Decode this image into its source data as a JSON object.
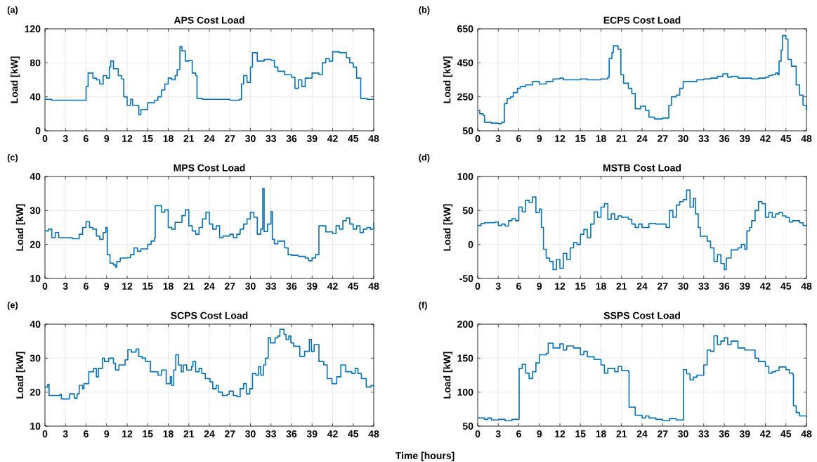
{
  "chart_data": [
    {
      "type": "step",
      "title": "APS Cost Load",
      "ylabel": "Load [kW]",
      "annotations": [
        "(a)"
      ],
      "color": "#0072bd",
      "grid": true,
      "xlim": [
        0,
        48
      ],
      "xticks": [
        0,
        3,
        6,
        9,
        12,
        15,
        18,
        21,
        24,
        27,
        30,
        33,
        36,
        39,
        42,
        45,
        48
      ],
      "ylim": [
        0,
        120
      ],
      "yticks": [
        0,
        40,
        80,
        120
      ],
      "x": [
        0,
        1,
        2,
        3,
        4,
        5,
        6,
        6.3,
        7,
        7.5,
        8,
        8.5,
        9,
        9.4,
        9.6,
        10,
        10.7,
        11.2,
        11.5,
        12,
        12.5,
        12.8,
        13.7,
        14,
        15,
        16,
        16.5,
        17,
        17.5,
        18,
        18.5,
        19,
        19.3,
        19.7,
        20,
        20.5,
        21,
        21.5,
        22,
        22.2,
        23,
        25,
        27,
        28.4,
        28.7,
        29,
        29.5,
        30,
        30.3,
        31,
        32,
        33,
        33.5,
        34,
        35,
        36,
        36.5,
        37,
        37.5,
        38,
        39,
        40,
        40.5,
        41,
        41.5,
        42,
        43,
        44,
        44.5,
        45,
        45.5,
        46.1,
        47,
        48
      ],
      "values": [
        37,
        36,
        36,
        36,
        36,
        36,
        52,
        68,
        62,
        60,
        55,
        65,
        62,
        75,
        82,
        73,
        65,
        61,
        40,
        30,
        37,
        30,
        19,
        25,
        33,
        36,
        40,
        48,
        55,
        62,
        60,
        65,
        72,
        99,
        94,
        82,
        83,
        68,
        65,
        38,
        37,
        37,
        36,
        37,
        55,
        65,
        57,
        75,
        92,
        82,
        84,
        83,
        75,
        70,
        66,
        63,
        50,
        60,
        52,
        62,
        68,
        66,
        80,
        85,
        82,
        93,
        92,
        86,
        80,
        75,
        62,
        38,
        37,
        37
      ]
    },
    {
      "type": "step",
      "title": "ECPS Cost Load",
      "ylabel": "Load [kW]",
      "annotations": [
        "(b)"
      ],
      "color": "#0072bd",
      "grid": true,
      "xlim": [
        0,
        48
      ],
      "xticks": [
        0,
        3,
        6,
        9,
        12,
        15,
        18,
        21,
        24,
        27,
        30,
        33,
        36,
        39,
        42,
        45,
        48
      ],
      "ylim": [
        50,
        650
      ],
      "yticks": [
        50,
        250,
        450,
        650
      ],
      "x": [
        0,
        0.3,
        0.8,
        1,
        2,
        3,
        3.5,
        3.9,
        4.3,
        4.8,
        5.2,
        5.8,
        6.2,
        7,
        8,
        9,
        10,
        11,
        12,
        12.5,
        15,
        16,
        18,
        19,
        19.2,
        19.6,
        19.8,
        20.5,
        20.9,
        21.3,
        22,
        22.5,
        23,
        23.8,
        24.5,
        25,
        25.8,
        27,
        27.9,
        28.3,
        29,
        29.5,
        30,
        31,
        32,
        33,
        34,
        35,
        35.8,
        36.5,
        37,
        38,
        40,
        41,
        42,
        42.5,
        43,
        43.5,
        43.8,
        44,
        44.3,
        44.5,
        45,
        45.3,
        45.8,
        46.5,
        47,
        47.5,
        48
      ],
      "values": [
        170,
        150,
        140,
        100,
        95,
        92,
        100,
        210,
        240,
        250,
        275,
        300,
        310,
        320,
        340,
        325,
        340,
        355,
        360,
        350,
        355,
        350,
        355,
        365,
        475,
        510,
        550,
        530,
        380,
        330,
        300,
        270,
        180,
        195,
        170,
        130,
        120,
        125,
        200,
        250,
        260,
        300,
        340,
        340,
        350,
        355,
        360,
        370,
        385,
        365,
        370,
        360,
        355,
        360,
        365,
        375,
        380,
        390,
        380,
        460,
        525,
        610,
        590,
        470,
        430,
        320,
        260,
        200,
        170
      ]
    },
    {
      "type": "step",
      "title": "MPS Cost Load",
      "ylabel": "Load [kW]",
      "annotations": [
        "(c)"
      ],
      "color": "#0072bd",
      "grid": true,
      "xlim": [
        0,
        48
      ],
      "xticks": [
        0,
        3,
        6,
        9,
        12,
        15,
        18,
        21,
        24,
        27,
        30,
        33,
        36,
        39,
        42,
        45,
        48
      ],
      "ylim": [
        10,
        40
      ],
      "yticks": [
        10,
        20,
        30,
        40
      ],
      "x": [
        0,
        0.5,
        1,
        1.5,
        2,
        3,
        4,
        5,
        5.5,
        6,
        6.5,
        7,
        7.5,
        8,
        8.5,
        8.9,
        9.1,
        9.5,
        10,
        10.3,
        10.5,
        11,
        12,
        12.5,
        13,
        13.5,
        14,
        15,
        15.5,
        16,
        16.1,
        17,
        17.5,
        18,
        18.5,
        19,
        20,
        20.5,
        21,
        21.5,
        22,
        22.5,
        23,
        23.5,
        24,
        24.5,
        25,
        25.5,
        26,
        27,
        27.5,
        28,
        28.5,
        29,
        29.5,
        30,
        30.5,
        31,
        31.5,
        31.8,
        32,
        32.5,
        33,
        33.2,
        33.5,
        34,
        35,
        35.5,
        36,
        37,
        38,
        38.5,
        39,
        39.5,
        40,
        41,
        42,
        42.5,
        43,
        43.5,
        44,
        44.5,
        45,
        45.5,
        46,
        46.5,
        47,
        47.5,
        48
      ],
      "values": [
        24,
        24.5,
        22,
        23.5,
        22,
        22,
        21.7,
        23,
        25,
        26.7,
        25,
        24.5,
        22.5,
        21.5,
        23.5,
        25,
        17,
        14.5,
        14,
        13.3,
        15,
        16,
        16.1,
        17,
        19,
        18,
        18.7,
        20,
        21,
        22,
        31.4,
        29.5,
        30.2,
        25,
        24.5,
        26.5,
        28.5,
        30.2,
        25.5,
        24,
        23,
        25,
        27.5,
        29.5,
        26,
        24.5,
        25.5,
        22,
        22.5,
        23,
        22,
        23,
        24.5,
        26,
        27.5,
        29.5,
        28,
        23,
        24.5,
        36.5,
        23.8,
        26,
        29.7,
        21.5,
        20.2,
        21,
        19,
        17,
        16.8,
        16.5,
        16,
        15.2,
        16,
        17,
        25.5,
        23.7,
        23.2,
        25.5,
        24.5,
        27,
        27.8,
        26,
        24.5,
        25.5,
        23.5,
        24.5,
        25,
        24.5,
        26.5
      ]
    },
    {
      "type": "step",
      "title": "MSTB Cost Load",
      "ylabel": "Load [kW]",
      "annotations": [
        "(d)"
      ],
      "color": "#0072bd",
      "grid": true,
      "xlim": [
        0,
        48
      ],
      "xticks": [
        0,
        3,
        6,
        9,
        12,
        15,
        18,
        21,
        24,
        27,
        30,
        33,
        36,
        39,
        42,
        45,
        48
      ],
      "ylim": [
        -50,
        100
      ],
      "yticks": [
        -50,
        0,
        50,
        100
      ],
      "x": [
        0,
        0.5,
        1,
        2,
        2.5,
        3,
        3.5,
        4,
        4.5,
        5,
        5.5,
        6,
        6.5,
        7,
        7.5,
        8,
        8.5,
        9,
        9.3,
        9.6,
        10,
        10.5,
        11,
        11.5,
        12,
        12.5,
        13,
        13.5,
        14,
        14.5,
        15,
        15.5,
        16,
        16.5,
        17,
        17.5,
        18,
        18.5,
        19,
        19.5,
        20,
        20.5,
        21,
        22,
        22.5,
        23,
        23.5,
        24,
        25,
        26,
        27,
        27.5,
        28,
        28.5,
        29,
        29.5,
        30,
        30.5,
        31,
        31.5,
        31.8,
        32.2,
        32.5,
        33,
        33.5,
        34,
        34.5,
        35,
        35.5,
        36,
        36.3,
        37,
        38,
        38.5,
        39,
        39.3,
        39.7,
        40,
        40.5,
        41,
        41.5,
        42,
        42.5,
        43,
        43.5,
        44,
        44.5,
        45,
        45.5,
        46,
        47,
        47.5,
        48
      ],
      "values": [
        28,
        31,
        32,
        32,
        33,
        28,
        30,
        27,
        35,
        38,
        35,
        55,
        48,
        65,
        62,
        70,
        47,
        52,
        25,
        -7,
        -20,
        -25,
        -37,
        -22,
        -35,
        -13,
        -22,
        -5,
        3,
        0,
        15,
        22,
        10,
        30,
        48,
        40,
        55,
        60,
        37,
        45,
        37,
        42,
        40,
        37,
        30,
        25,
        30,
        25,
        31,
        30,
        30,
        25,
        50,
        40,
        58,
        63,
        66,
        80,
        55,
        68,
        45,
        25,
        12,
        12,
        5,
        -5,
        -25,
        -15,
        -28,
        -37,
        -20,
        -8,
        -5,
        0,
        -7,
        20,
        25,
        35,
        50,
        63,
        60,
        40,
        47,
        40,
        45,
        47,
        42,
        40,
        33,
        35,
        32,
        28,
        27
      ]
    },
    {
      "type": "step",
      "title": "SCPS Cost Load",
      "ylabel": "Load [kW]",
      "xlabel": "Time [hours]",
      "annotations": [
        "(e)"
      ],
      "color": "#0072bd",
      "grid": true,
      "xlim": [
        0,
        48
      ],
      "xticks": [
        0,
        3,
        6,
        9,
        12,
        15,
        18,
        21,
        24,
        27,
        30,
        33,
        36,
        39,
        42,
        45,
        48
      ],
      "ylim": [
        10,
        40
      ],
      "yticks": [
        10,
        20,
        30,
        40
      ],
      "x": [
        0,
        0.4,
        0.6,
        2.2,
        2.4,
        3.6,
        4.3,
        4.7,
        5,
        5.5,
        5.7,
        6.4,
        7.1,
        7.5,
        7.8,
        8.4,
        8.7,
        9.3,
        10,
        10.3,
        10.8,
        11.7,
        12.1,
        12.6,
        13.3,
        13.7,
        14.2,
        14.7,
        15.4,
        16,
        16.5,
        17,
        17.7,
        18.3,
        18.5,
        18.8,
        19.1,
        19.5,
        19.9,
        20.2,
        20.7,
        21.4,
        21.6,
        22,
        22.5,
        22.9,
        23.4,
        24.1,
        24.5,
        25,
        25.3,
        25.9,
        26.6,
        26.9,
        27.5,
        28,
        28.5,
        29,
        29.4,
        29.9,
        30.3,
        30.8,
        31.2,
        31.5,
        31.9,
        32.2,
        32.6,
        32.9,
        33.6,
        34,
        34.3,
        34.9,
        35.2,
        35.6,
        35.9,
        36.3,
        37.2,
        37.9,
        38.6,
        38.9,
        39.3,
        40,
        40.7,
        41.2,
        41.9,
        42.6,
        43.2,
        43.9,
        44.8,
        45.3,
        45.7,
        46.2,
        46.9,
        47.6,
        48
      ],
      "values": [
        21.5,
        22.3,
        19,
        19.4,
        18,
        19.5,
        18.2,
        19.5,
        22,
        21,
        22.5,
        26,
        27,
        24.5,
        27,
        30,
        29,
        30,
        28.5,
        26.5,
        28,
        29.5,
        32.5,
        31.8,
        32.7,
        30.5,
        30,
        29,
        26,
        26,
        25,
        26.5,
        22.5,
        24.5,
        22,
        26.5,
        31,
        28,
        26,
        28,
        26.5,
        27.5,
        29,
        26,
        27,
        25.5,
        24,
        23,
        21,
        22,
        20,
        19,
        19.3,
        20.3,
        19,
        18.7,
        21,
        22.5,
        19.5,
        21,
        25.5,
        25,
        27.5,
        25,
        28,
        30,
        36,
        34.5,
        36,
        36.5,
        38.5,
        37,
        35.5,
        36.5,
        34.5,
        33.5,
        30.5,
        32,
        35.5,
        32,
        34,
        29,
        28,
        24,
        22.5,
        24.5,
        28,
        26,
        25.5,
        27,
        25.5,
        24,
        21.5,
        22,
        21.5
      ]
    },
    {
      "type": "step",
      "title": "SSPS Cost Load",
      "ylabel": "Load [kW]",
      "annotations": [
        "(f)"
      ],
      "color": "#0072bd",
      "grid": true,
      "xlim": [
        0,
        48
      ],
      "xticks": [
        0,
        3,
        6,
        9,
        12,
        15,
        18,
        21,
        24,
        27,
        30,
        33,
        36,
        39,
        42,
        45,
        48
      ],
      "ylim": [
        50,
        200
      ],
      "yticks": [
        50,
        100,
        150,
        200
      ],
      "x": [
        0,
        1,
        1.5,
        2,
        3,
        4,
        5,
        5.9,
        6.05,
        6.5,
        7,
        7.5,
        8,
        8.5,
        9,
        10,
        10.3,
        11,
        12,
        12.5,
        13,
        14,
        15,
        15.5,
        16,
        17,
        18,
        18.5,
        19,
        20,
        20.5,
        21,
        22,
        22.1,
        23,
        24,
        24.5,
        25,
        26,
        27,
        28,
        29,
        30,
        30.05,
        30.5,
        31,
        31.5,
        32,
        33,
        33.5,
        34,
        34.5,
        35,
        35.5,
        36,
        36.5,
        37,
        38,
        39,
        40,
        40.5,
        41,
        42,
        42.5,
        43,
        43.5,
        44,
        45,
        45.5,
        46,
        46.1,
        46.5,
        47,
        48
      ],
      "values": [
        62,
        60,
        62,
        59,
        60,
        58,
        60,
        60,
        135,
        141,
        128,
        120,
        130,
        143,
        155,
        157,
        172,
        165,
        171,
        162,
        168,
        165,
        155,
        160,
        152,
        148,
        140,
        128,
        135,
        130,
        138,
        132,
        130,
        78,
        66,
        62,
        65,
        62,
        60,
        58,
        61,
        59,
        60,
        133,
        127,
        118,
        122,
        125,
        140,
        162,
        160,
        183,
        170,
        175,
        180,
        170,
        175,
        165,
        162,
        162,
        150,
        145,
        138,
        128,
        130,
        132,
        137,
        133,
        128,
        126,
        80,
        70,
        65,
        63
      ]
    }
  ]
}
